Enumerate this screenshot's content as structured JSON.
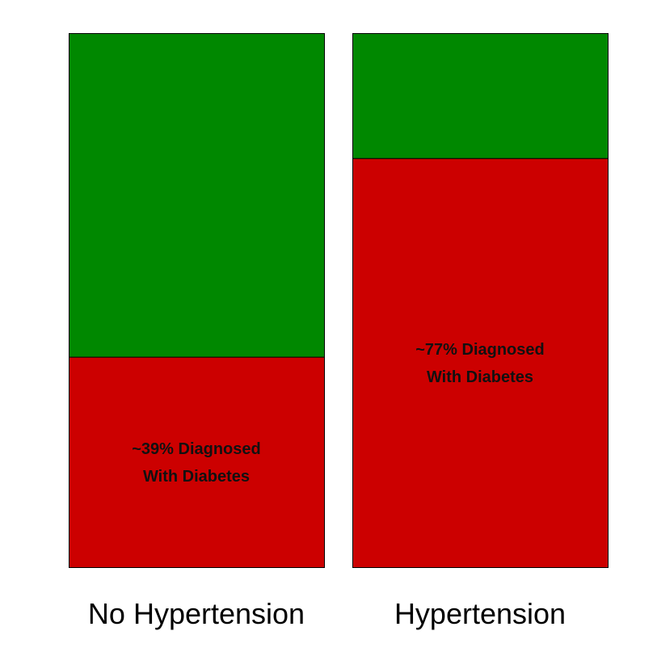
{
  "chart_data": {
    "type": "bar",
    "stacked": true,
    "percent_scale": true,
    "categories": [
      "No Hypertension",
      "Hypertension"
    ],
    "series": [
      {
        "values": [
          39.4,
          76.6
        ],
        "color": "#cc0000",
        "labels": [
          [
            "~39% Diagnosed",
            "With Diabetes"
          ],
          [
            "~77% Diagnosed",
            "With Diabetes"
          ]
        ]
      },
      {
        "values": [
          60.6,
          23.4
        ],
        "color": "#008800"
      }
    ],
    "ylim": [
      0,
      100
    ],
    "title": "",
    "xlabel": "",
    "ylabel": "",
    "grid": false,
    "legend": "none"
  }
}
